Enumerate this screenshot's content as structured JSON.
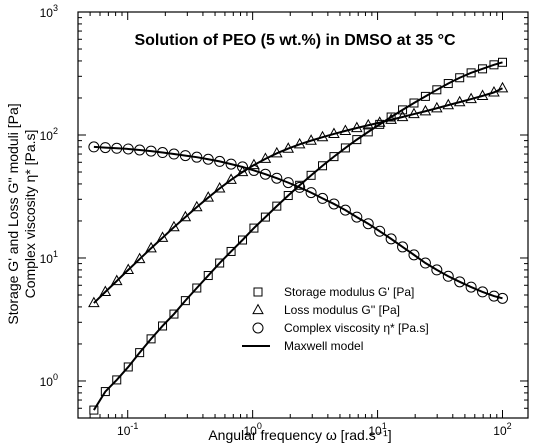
{
  "chart_data": {
    "type": "scatter",
    "title": "Solution of PEO (5 wt.%) in DMSO at 35 °C",
    "xlabel": "Angular frequency ω [rad.s⁻¹]",
    "ylabel": {
      "line1": "Storage G' and Loss G'' moduli [Pa]",
      "line2": "Complex viscosity η* [Pa.s]"
    },
    "x_scale": "log",
    "y_scale": "log",
    "xlim": [
      0.04,
      160
    ],
    "ylim": [
      0.5,
      1000
    ],
    "x_ticks": [
      {
        "value": 0.1,
        "label": "10",
        "exp": "-1"
      },
      {
        "value": 1,
        "label": "10",
        "exp": "0"
      },
      {
        "value": 10,
        "label": "10",
        "exp": "1"
      },
      {
        "value": 100,
        "label": "10",
        "exp": "2"
      }
    ],
    "y_ticks": [
      {
        "value": 1,
        "label": "10",
        "exp": "0"
      },
      {
        "value": 10,
        "label": "10",
        "exp": "1"
      },
      {
        "value": 100,
        "label": "10",
        "exp": "2"
      },
      {
        "value": 1000,
        "label": "10",
        "exp": "3"
      }
    ],
    "grid": false,
    "legend_position": "bottom-right",
    "legend": [
      {
        "name": "Storage modulus G' [Pa]",
        "marker": "square"
      },
      {
        "name": "Loss modulus G'' [Pa]",
        "marker": "triangle"
      },
      {
        "name": "Complex viscosity η* [Pa.s]",
        "marker": "circle"
      },
      {
        "name": "Maxwell model",
        "marker": "line"
      }
    ],
    "series": [
      {
        "name": "Storage modulus G' [Pa]",
        "marker": "square",
        "x": [
          0.0536,
          0.0662,
          0.0817,
          0.101,
          0.1246,
          0.1538,
          0.19,
          0.2345,
          0.2894,
          0.3573,
          0.4411,
          0.5445,
          0.6722,
          0.8298,
          1.024,
          1.265,
          1.561,
          1.927,
          2.379,
          2.937,
          3.626,
          4.476,
          5.526,
          6.822,
          8.421,
          10.4,
          12.84,
          15.85,
          19.56,
          24.15,
          29.81,
          36.8,
          45.43,
          56.08,
          69.23,
          85.46,
          100
        ],
        "y": [
          0.58,
          0.82,
          1.02,
          1.3,
          1.7,
          2.2,
          2.8,
          3.5,
          4.5,
          5.7,
          7.2,
          9.1,
          11.3,
          14.0,
          17.5,
          21.5,
          26.4,
          32.2,
          39.0,
          47.0,
          56.2,
          66.7,
          78.5,
          91.7,
          106,
          122,
          140,
          160,
          182,
          206,
          233,
          262,
          292,
          320,
          345,
          372,
          390
        ]
      },
      {
        "name": "Loss modulus G'' [Pa]",
        "marker": "triangle",
        "x": [
          0.0536,
          0.0662,
          0.0817,
          0.101,
          0.1246,
          0.1538,
          0.19,
          0.2345,
          0.2894,
          0.3573,
          0.4411,
          0.5445,
          0.6722,
          0.8298,
          1.024,
          1.265,
          1.561,
          1.927,
          2.379,
          2.937,
          3.626,
          4.476,
          5.526,
          6.822,
          8.421,
          10.4,
          12.84,
          15.85,
          19.56,
          24.15,
          29.81,
          36.8,
          45.43,
          56.08,
          69.23,
          85.46,
          100
        ],
        "y": [
          4.3,
          5.3,
          6.5,
          8.0,
          9.8,
          12.0,
          14.6,
          17.8,
          21.5,
          25.9,
          31.0,
          36.8,
          43.2,
          50.0,
          57.0,
          64.0,
          71.0,
          77.5,
          84.0,
          90.0,
          96.0,
          102,
          108,
          114,
          120,
          126,
          133,
          140,
          148,
          156,
          165,
          175,
          185,
          196,
          208,
          222,
          240
        ]
      },
      {
        "name": "Complex viscosity η* [Pa.s]",
        "marker": "circle",
        "x": [
          0.0536,
          0.0662,
          0.0817,
          0.101,
          0.1246,
          0.1538,
          0.19,
          0.2345,
          0.2894,
          0.3573,
          0.4411,
          0.5445,
          0.6722,
          0.8298,
          1.024,
          1.265,
          1.561,
          1.927,
          2.379,
          2.937,
          3.626,
          4.476,
          5.526,
          6.822,
          8.421,
          10.4,
          12.84,
          15.85,
          19.56,
          24.15,
          29.81,
          36.8,
          45.43,
          56.08,
          69.23,
          85.46,
          100
        ],
        "y": [
          80,
          79,
          78,
          77,
          75.5,
          74,
          72,
          70,
          68,
          66,
          63.5,
          61,
          58,
          55,
          51.5,
          48,
          44.5,
          41,
          37.5,
          34,
          30.5,
          27.5,
          24.5,
          21.5,
          19,
          16.5,
          14.3,
          12.3,
          10.6,
          9.1,
          8.0,
          7.1,
          6.4,
          5.8,
          5.3,
          4.9,
          4.7
        ]
      }
    ]
  }
}
